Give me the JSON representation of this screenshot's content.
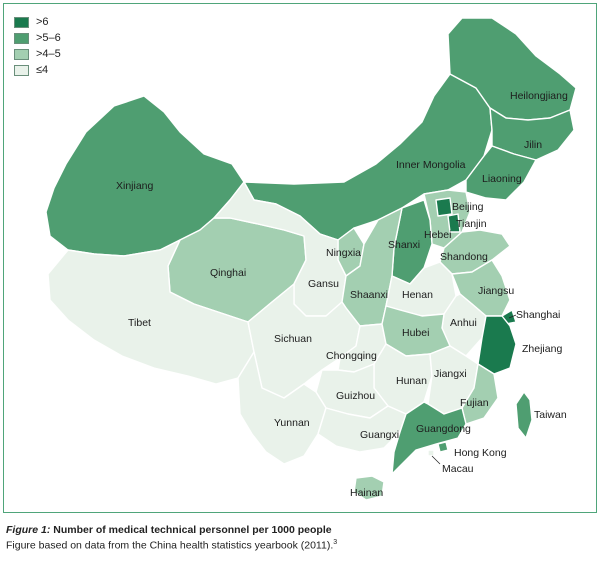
{
  "legend": {
    "items": [
      {
        "label": ">6",
        "color": "#1a7a4e"
      },
      {
        "label": ">5–6",
        "color": "#4f9e71"
      },
      {
        "label": ">4–5",
        "color": "#a3cfb1"
      },
      {
        "label": "≤4",
        "color": "#e9f2ea"
      }
    ]
  },
  "regions": [
    {
      "name": "Heilongjiang",
      "category": ">5–6"
    },
    {
      "name": "Jilin",
      "category": ">5–6"
    },
    {
      "name": "Liaoning",
      "category": ">5–6"
    },
    {
      "name": "Inner Mongolia",
      "category": ">5–6"
    },
    {
      "name": "Xinjiang",
      "category": ">5–6"
    },
    {
      "name": "Beijing",
      "category": ">6"
    },
    {
      "name": "Tianjin",
      "category": ">6"
    },
    {
      "name": "Hebei",
      "category": ">4–5"
    },
    {
      "name": "Shanxi",
      "category": ">5–6"
    },
    {
      "name": "Ningxia",
      "category": ">4–5"
    },
    {
      "name": "Shandong",
      "category": ">4–5"
    },
    {
      "name": "Qinghai",
      "category": ">4–5"
    },
    {
      "name": "Gansu",
      "category": "≤4"
    },
    {
      "name": "Shaanxi",
      "category": ">4–5"
    },
    {
      "name": "Henan",
      "category": "≤4"
    },
    {
      "name": "Jiangsu",
      "category": ">4–5"
    },
    {
      "name": "Shanghai",
      "category": ">6"
    },
    {
      "name": "Tibet",
      "category": "≤4"
    },
    {
      "name": "Sichuan",
      "category": "≤4"
    },
    {
      "name": "Anhui",
      "category": "≤4"
    },
    {
      "name": "Hubei",
      "category": ">4–5"
    },
    {
      "name": "Zhejiang",
      "category": ">6"
    },
    {
      "name": "Chongqing",
      "category": "≤4"
    },
    {
      "name": "Hunan",
      "category": "≤4"
    },
    {
      "name": "Jiangxi",
      "category": "≤4"
    },
    {
      "name": "Guizhou",
      "category": "≤4"
    },
    {
      "name": "Fujian",
      "category": ">4–5"
    },
    {
      "name": "Yunnan",
      "category": "≤4"
    },
    {
      "name": "Guangxi",
      "category": "≤4"
    },
    {
      "name": "Guangdong",
      "category": ">5–6"
    },
    {
      "name": "Taiwan",
      "category": ">5–6"
    },
    {
      "name": "Hong Kong",
      "category": ">5–6"
    },
    {
      "name": "Macau",
      "category": "≤4"
    },
    {
      "name": "Hainan",
      "category": ">4–5"
    }
  ],
  "caption": {
    "figure_label": "Figure 1:",
    "title": "Number of medical technical personnel per 1000 people",
    "source": "Figure based on data from the China health statistics yearbook (2011).",
    "ref": "3"
  }
}
